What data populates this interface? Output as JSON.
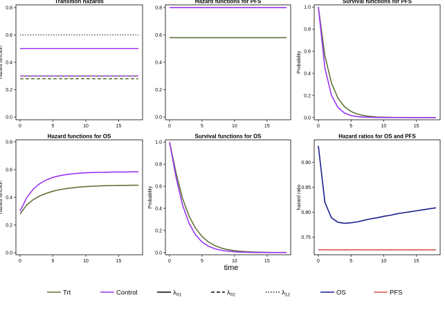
{
  "x_axis_label": "time",
  "panels": [
    {
      "type": "line",
      "title": "Transition hazards",
      "ylabel": "hazard function",
      "xlim": [
        0,
        18
      ],
      "ylim": [
        -0.02,
        0.82
      ],
      "xticks": [
        0,
        5,
        10,
        15
      ],
      "yticks": [
        0.0,
        0.2,
        0.4,
        0.6,
        0.8
      ],
      "ytick_labels": [
        "0.0",
        "0.2",
        "0.4",
        "0.6",
        "0.8"
      ],
      "series": [
        {
          "name": "Trt λ01",
          "color": "#5e7339",
          "dash": "solid",
          "y": [
            0.3,
            0.3
          ]
        },
        {
          "name": "Control λ01",
          "color": "#9933ee",
          "dash": "solid",
          "y": [
            0.5,
            0.5
          ]
        },
        {
          "name": "Control λ02",
          "color": "#9933ee",
          "dash": "dashed",
          "y": [
            0.3,
            0.3
          ]
        },
        {
          "name": "Trt λ02",
          "color": "#5e7339",
          "dash": "dashed",
          "y": [
            0.28,
            0.28
          ]
        },
        {
          "name": "Control λ12",
          "color": "#9933ee",
          "dash": "dotted",
          "y": [
            0.6,
            0.6
          ]
        },
        {
          "name": "Trt λ12",
          "color": "#5e7339",
          "dash": "dotted",
          "y": [
            0.6,
            0.6
          ]
        }
      ]
    },
    {
      "type": "line",
      "title": "Hazard functions for PFS",
      "ylabel": "",
      "xlim": [
        0,
        18
      ],
      "ylim": [
        -0.02,
        0.82
      ],
      "xticks": [
        0,
        5,
        10,
        15
      ],
      "yticks": [
        0.0,
        0.2,
        0.4,
        0.6,
        0.8
      ],
      "ytick_labels": [
        "0.0",
        "0.2",
        "0.4",
        "0.6",
        "0.8"
      ],
      "series": [
        {
          "name": "Control",
          "color": "#9933ee",
          "dash": "solid",
          "y": [
            0.8,
            0.8
          ]
        },
        {
          "name": "Trt",
          "color": "#5e7339",
          "dash": "solid",
          "y": [
            0.58,
            0.58
          ]
        }
      ]
    },
    {
      "type": "line",
      "title": "Survival functions for PFS",
      "ylabel": "Probability",
      "xlim": [
        0,
        18
      ],
      "ylim": [
        -0.02,
        1.02
      ],
      "xticks": [
        0,
        5,
        10,
        15
      ],
      "yticks": [
        0.0,
        0.2,
        0.4,
        0.6,
        0.8,
        1.0
      ],
      "ytick_labels": [
        "0.0",
        "0.2",
        "0.4",
        "0.6",
        "0.8",
        "1.0"
      ],
      "series": [
        {
          "name": "Trt",
          "color": "#5e7339",
          "dash": "solid",
          "y": [
            1.0,
            0.56,
            0.313,
            0.175,
            0.098,
            0.055,
            0.031,
            0.017,
            0.01,
            0.005,
            0.003,
            0.002,
            0.001,
            0.001,
            0.0,
            0.0,
            0.0,
            0.0,
            0.0
          ]
        },
        {
          "name": "Control",
          "color": "#9933ee",
          "dash": "solid",
          "y": [
            1.0,
            0.449,
            0.202,
            0.091,
            0.041,
            0.018,
            0.008,
            0.004,
            0.002,
            0.001,
            0.0,
            0.0,
            0.0,
            0.0,
            0.0,
            0.0,
            0.0,
            0.0,
            0.0
          ]
        }
      ]
    },
    {
      "type": "line",
      "title": "Hazard functions for OS",
      "ylabel": "hazard function",
      "xlim": [
        0,
        18
      ],
      "ylim": [
        -0.015,
        0.815
      ],
      "xticks": [
        0,
        5,
        10,
        15
      ],
      "yticks": [
        0.0,
        0.2,
        0.4,
        0.6,
        0.8
      ],
      "ytick_labels": [
        "0.0",
        "0.2",
        "0.4",
        "0.6",
        "0.8"
      ],
      "series": [
        {
          "name": "Control",
          "color": "#9933ee",
          "dash": "solid",
          "y": [
            0.3,
            0.396,
            0.459,
            0.499,
            0.526,
            0.544,
            0.556,
            0.564,
            0.57,
            0.574,
            0.577,
            0.579,
            0.58,
            0.581,
            0.582,
            0.583,
            0.583,
            0.584,
            0.585
          ]
        },
        {
          "name": "Trt",
          "color": "#5e7339",
          "dash": "solid",
          "y": [
            0.28,
            0.344,
            0.383,
            0.41,
            0.429,
            0.444,
            0.455,
            0.463,
            0.469,
            0.474,
            0.477,
            0.48,
            0.482,
            0.484,
            0.485,
            0.486,
            0.486,
            0.487,
            0.487
          ]
        }
      ]
    },
    {
      "type": "line",
      "title": "Survival functions for OS",
      "ylabel": "Probability",
      "xlim": [
        0,
        18
      ],
      "ylim": [
        -0.02,
        1.02
      ],
      "xticks": [
        0,
        5,
        10,
        15
      ],
      "yticks": [
        0.0,
        0.2,
        0.4,
        0.6,
        0.8,
        1.0
      ],
      "ytick_labels": [
        "0.0",
        "0.2",
        "0.4",
        "0.6",
        "0.8",
        "1.0"
      ],
      "series": [
        {
          "name": "Trt",
          "color": "#5e7339",
          "dash": "solid",
          "y": [
            1.0,
            0.72,
            0.49,
            0.33,
            0.22,
            0.145,
            0.095,
            0.062,
            0.04,
            0.026,
            0.017,
            0.011,
            0.007,
            0.005,
            0.003,
            0.002,
            0.001,
            0.001,
            0.001
          ]
        },
        {
          "name": "Control",
          "color": "#9933ee",
          "dash": "solid",
          "y": [
            1.0,
            0.68,
            0.43,
            0.265,
            0.16,
            0.095,
            0.057,
            0.034,
            0.02,
            0.012,
            0.007,
            0.004,
            0.002,
            0.001,
            0.001,
            0.0,
            0.0,
            0.0,
            0.0
          ]
        }
      ]
    },
    {
      "type": "line",
      "title": "Hazard ratios for OS and PFS",
      "ylabel": "hazard ratio",
      "xlim": [
        0,
        18
      ],
      "ylim": [
        0.715,
        0.945
      ],
      "xticks": [
        0,
        5,
        10,
        15
      ],
      "yticks": [
        0.75,
        0.8,
        0.85,
        0.9
      ],
      "ytick_labels": [
        "0.75",
        "0.80",
        "0.85",
        "0.90"
      ],
      "series": [
        {
          "name": "OS",
          "color": "#1c1c8c",
          "dash": "solid",
          "y": [
            0.933,
            0.82,
            0.789,
            0.78,
            0.778,
            0.779,
            0.781,
            0.784,
            0.787,
            0.789,
            0.792,
            0.794,
            0.797,
            0.799,
            0.801,
            0.803,
            0.805,
            0.807,
            0.809
          ]
        },
        {
          "name": "PFS",
          "color": "#d65454",
          "dash": "solid",
          "y": [
            0.725,
            0.725
          ]
        }
      ]
    }
  ],
  "legend": {
    "items": [
      {
        "label": "Trt",
        "sub": "",
        "color": "#5e7339",
        "dash": "solid"
      },
      {
        "label": "Control",
        "sub": "",
        "color": "#9933ee",
        "dash": "solid"
      },
      {
        "label": "λ",
        "sub": "01",
        "color": "#000000",
        "dash": "solid"
      },
      {
        "label": "λ",
        "sub": "02",
        "color": "#000000",
        "dash": "dashed"
      },
      {
        "label": "λ",
        "sub": "12",
        "color": "#000000",
        "dash": "dotted"
      },
      {
        "label": "OS",
        "sub": "",
        "color": "#1c1c8c",
        "dash": "solid"
      },
      {
        "label": "PFS",
        "sub": "",
        "color": "#d65454",
        "dash": "solid"
      }
    ]
  }
}
